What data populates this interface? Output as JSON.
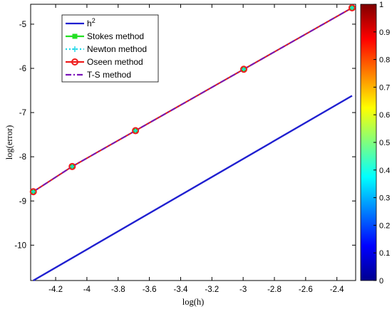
{
  "chart_data": {
    "type": "line",
    "xlabel": "log(h)",
    "ylabel": "log(error)",
    "xlim": [
      -4.36,
      -2.28
    ],
    "ylim": [
      -10.8,
      -4.55
    ],
    "xticks": [
      -4.2,
      -4,
      -3.8,
      -3.6,
      -3.4,
      -3.2,
      -3,
      -2.8,
      -2.6,
      -2.4
    ],
    "xtick_labels": [
      "-4.2",
      "-4",
      "-3.8",
      "-3.6",
      "-3.4",
      "-3.2",
      "-3",
      "-2.8",
      "-2.6",
      "-2.4"
    ],
    "yticks": [
      -10,
      -9,
      -8,
      -7,
      -6,
      -5
    ],
    "ytick_labels": [
      "-10",
      "-9",
      "-8",
      "-7",
      "-6",
      "-5"
    ],
    "grid": false,
    "legend_position": "top-left",
    "series": [
      {
        "name": "h",
        "name_superscript": "2",
        "color": "#1f1fd0",
        "style": "solid",
        "marker": "none",
        "x": [
          -4.343,
          -2.303
        ],
        "y": [
          -10.8,
          -6.62
        ]
      },
      {
        "name": "Stokes method",
        "color": "#22e022",
        "style": "solid",
        "marker": "square",
        "x": [
          -4.343,
          -4.094,
          -3.689,
          -2.996,
          -2.303
        ],
        "y": [
          -8.79,
          -8.22,
          -7.41,
          -6.02,
          -4.63
        ]
      },
      {
        "name": "Newton method",
        "color": "#22d8e8",
        "style": "dotted",
        "marker": "plus",
        "x": [
          -4.343,
          -4.094,
          -3.689,
          -2.996,
          -2.303
        ],
        "y": [
          -8.79,
          -8.22,
          -7.41,
          -6.02,
          -4.63
        ]
      },
      {
        "name": "Oseen method",
        "color": "#ee1c1c",
        "style": "solid",
        "marker": "circle",
        "x": [
          -4.343,
          -4.094,
          -3.689,
          -2.996,
          -2.303
        ],
        "y": [
          -8.79,
          -8.22,
          -7.41,
          -6.02,
          -4.63
        ]
      },
      {
        "name": "T-S method",
        "color": "#7a12b8",
        "style": "dashdot",
        "marker": "none",
        "x": [
          -4.343,
          -4.094,
          -3.689,
          -2.996,
          -2.303
        ],
        "y": [
          -8.79,
          -8.22,
          -7.41,
          -6.02,
          -4.63
        ]
      }
    ],
    "colorbar": {
      "colormap": "jet",
      "range": [
        0,
        1
      ],
      "ticks": [
        0,
        0.1,
        0.2,
        0.3,
        0.4,
        0.5,
        0.6,
        0.7,
        0.8,
        0.9,
        1
      ],
      "tick_labels": [
        "0",
        "0.1",
        "0.2",
        "0.3",
        "0.4",
        "0.5",
        "0.6",
        "0.7",
        "0.8",
        "0.9",
        "1"
      ]
    }
  }
}
